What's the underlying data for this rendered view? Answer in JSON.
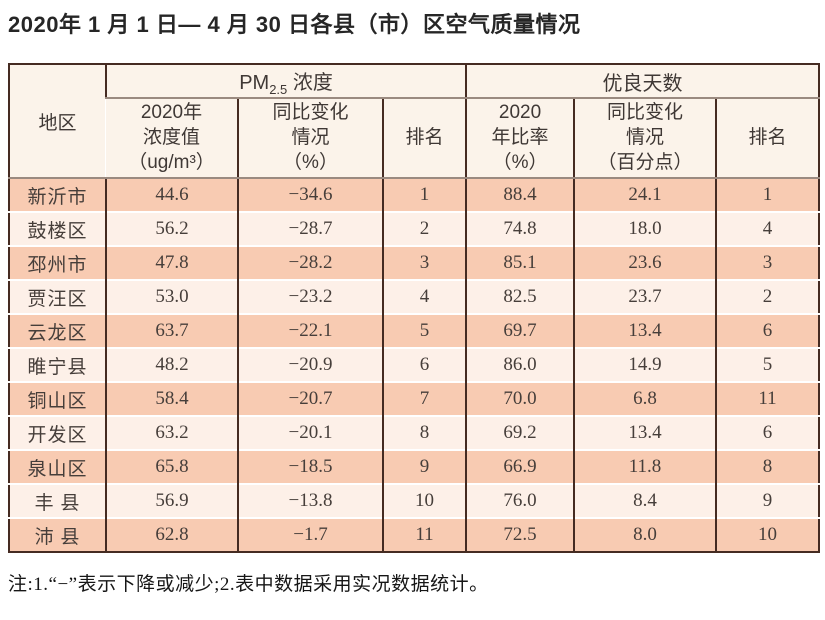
{
  "page": {
    "title": "2020年 1 月 1 日— 4 月 30 日各县（市）区空气质量情况"
  },
  "table": {
    "corner_header": "地区",
    "pm_group": {
      "prefix": "PM",
      "sub": "2.5",
      "suffix": " 浓度"
    },
    "good_group_label": "优良天数",
    "sub_headers": {
      "pm_value": "2020年\n浓度值\n（ug/m³）",
      "pm_change": "同比变化\n情况\n（%）",
      "pm_rank": "排名",
      "good_ratio": "2020\n年比率\n（%）",
      "good_change": "同比变化\n情况\n（百分点）",
      "good_rank": "排名"
    },
    "rows": [
      {
        "region": "新沂市",
        "pm_value": "44.6",
        "pm_change": "−34.6",
        "pm_rank": "1",
        "good_ratio": "88.4",
        "good_change": "24.1",
        "good_rank": "1"
      },
      {
        "region": "鼓楼区",
        "pm_value": "56.2",
        "pm_change": "−28.7",
        "pm_rank": "2",
        "good_ratio": "74.8",
        "good_change": "18.0",
        "good_rank": "4"
      },
      {
        "region": "邳州市",
        "pm_value": "47.8",
        "pm_change": "−28.2",
        "pm_rank": "3",
        "good_ratio": "85.1",
        "good_change": "23.6",
        "good_rank": "3"
      },
      {
        "region": "贾汪区",
        "pm_value": "53.0",
        "pm_change": "−23.2",
        "pm_rank": "4",
        "good_ratio": "82.5",
        "good_change": "23.7",
        "good_rank": "2"
      },
      {
        "region": "云龙区",
        "pm_value": "63.7",
        "pm_change": "−22.1",
        "pm_rank": "5",
        "good_ratio": "69.7",
        "good_change": "13.4",
        "good_rank": "6"
      },
      {
        "region": "睢宁县",
        "pm_value": "48.2",
        "pm_change": "−20.9",
        "pm_rank": "6",
        "good_ratio": "86.0",
        "good_change": "14.9",
        "good_rank": "5"
      },
      {
        "region": "铜山区",
        "pm_value": "58.4",
        "pm_change": "−20.7",
        "pm_rank": "7",
        "good_ratio": "70.0",
        "good_change": "6.8",
        "good_rank": "11"
      },
      {
        "region": "开发区",
        "pm_value": "63.2",
        "pm_change": "−20.1",
        "pm_rank": "8",
        "good_ratio": "69.2",
        "good_change": "13.4",
        "good_rank": "6"
      },
      {
        "region": "泉山区",
        "pm_value": "65.8",
        "pm_change": "−18.5",
        "pm_rank": "9",
        "good_ratio": "66.9",
        "good_change": "11.8",
        "good_rank": "8"
      },
      {
        "region": "丰 县",
        "pm_value": "56.9",
        "pm_change": "−13.8",
        "pm_rank": "10",
        "good_ratio": "76.0",
        "good_change": "8.4",
        "good_rank": "9"
      },
      {
        "region": "沛 县",
        "pm_value": "62.8",
        "pm_change": "−1.7",
        "pm_rank": "11",
        "good_ratio": "72.5",
        "good_change": "8.0",
        "good_rank": "10"
      }
    ]
  },
  "note": "注:1.“−”表示下降或减少;2.表中数据采用实况数据统计。",
  "colors": {
    "row_odd_bg": "#f8cbb2",
    "row_even_bg": "#fdf0e8",
    "header_bg": "#fbf3ea",
    "border_dark": "#452b22",
    "header_line": "#9a8a80",
    "text": "#463e3a"
  }
}
